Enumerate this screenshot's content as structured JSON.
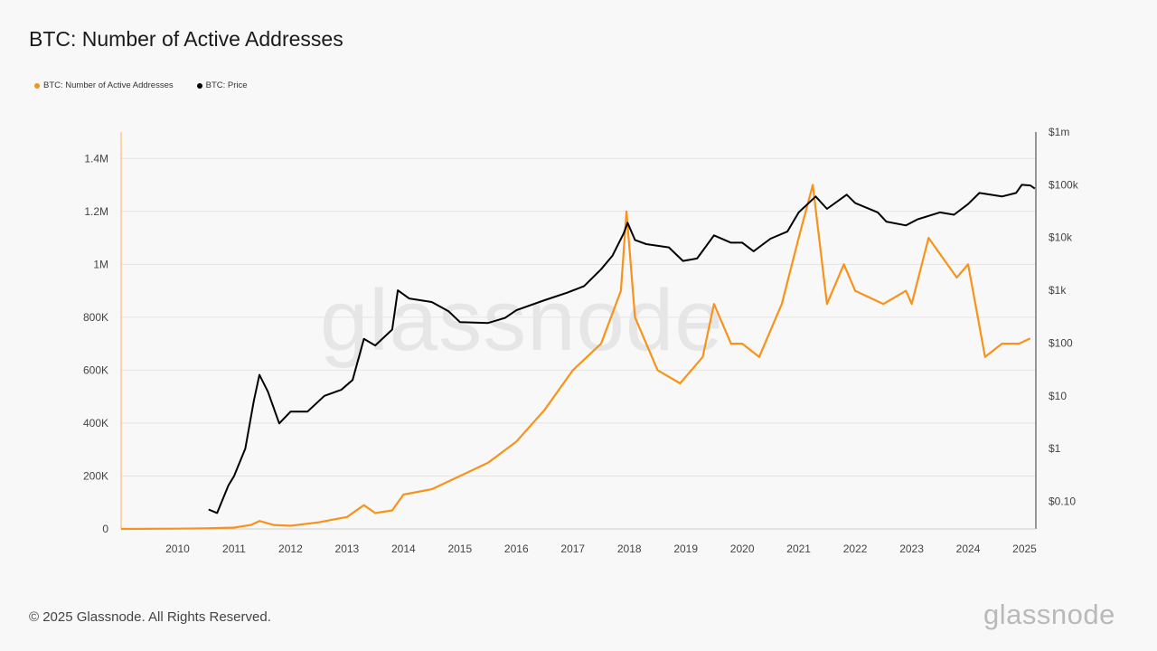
{
  "header": {
    "title": "BTC: Number of Active Addresses"
  },
  "legend": [
    {
      "label": "BTC: Number of Active Addresses",
      "color": "#f7931a"
    },
    {
      "label": "BTC: Price",
      "color": "#000000"
    }
  ],
  "watermark": "glassnode",
  "footer": {
    "copyright": "© 2025 Glassnode. All Rights Reserved.",
    "brand": "glassnode"
  },
  "chart_data": {
    "type": "line",
    "title": "BTC: Number of Active Addresses",
    "x_ticks": [
      "2010",
      "2011",
      "2012",
      "2013",
      "2014",
      "2015",
      "2016",
      "2017",
      "2018",
      "2019",
      "2020",
      "2021",
      "2022",
      "2023",
      "2024",
      "2025"
    ],
    "x_range": [
      2009.0,
      2025.2
    ],
    "y_left": {
      "ticks": [
        "0",
        "200K",
        "400K",
        "600K",
        "800K",
        "1M",
        "1.2M",
        "1.4M"
      ],
      "tick_values": [
        0,
        200000,
        400000,
        600000,
        800000,
        1000000,
        1200000,
        1400000
      ],
      "range": [
        0,
        1500000
      ]
    },
    "y_right": {
      "scale": "log",
      "ticks": [
        "$0.10",
        "$1",
        "$10",
        "$100",
        "$1k",
        "$10k",
        "$100k",
        "$1m"
      ],
      "tick_values": [
        0.1,
        1,
        10,
        100,
        1000,
        10000,
        100000,
        1000000
      ],
      "range": [
        0.03,
        1000000
      ]
    },
    "series": [
      {
        "name": "BTC: Number of Active Addresses",
        "axis": "left",
        "color": "#f7931a",
        "points": [
          [
            2009.0,
            0
          ],
          [
            2010.0,
            1000
          ],
          [
            2010.5,
            2000
          ],
          [
            2011.0,
            5000
          ],
          [
            2011.3,
            15000
          ],
          [
            2011.45,
            30000
          ],
          [
            2011.7,
            15000
          ],
          [
            2012.0,
            12000
          ],
          [
            2012.5,
            25000
          ],
          [
            2013.0,
            45000
          ],
          [
            2013.3,
            90000
          ],
          [
            2013.5,
            60000
          ],
          [
            2013.8,
            70000
          ],
          [
            2014.0,
            130000
          ],
          [
            2014.5,
            150000
          ],
          [
            2015.0,
            200000
          ],
          [
            2015.5,
            250000
          ],
          [
            2016.0,
            330000
          ],
          [
            2016.5,
            450000
          ],
          [
            2017.0,
            600000
          ],
          [
            2017.5,
            700000
          ],
          [
            2017.85,
            900000
          ],
          [
            2017.95,
            1200000
          ],
          [
            2018.1,
            800000
          ],
          [
            2018.5,
            600000
          ],
          [
            2018.9,
            550000
          ],
          [
            2019.3,
            650000
          ],
          [
            2019.5,
            850000
          ],
          [
            2019.8,
            700000
          ],
          [
            2020.0,
            700000
          ],
          [
            2020.3,
            650000
          ],
          [
            2020.7,
            850000
          ],
          [
            2021.0,
            1100000
          ],
          [
            2021.25,
            1300000
          ],
          [
            2021.5,
            850000
          ],
          [
            2021.8,
            1000000
          ],
          [
            2022.0,
            900000
          ],
          [
            2022.5,
            850000
          ],
          [
            2022.9,
            900000
          ],
          [
            2023.0,
            850000
          ],
          [
            2023.3,
            1100000
          ],
          [
            2023.8,
            950000
          ],
          [
            2024.0,
            1000000
          ],
          [
            2024.3,
            650000
          ],
          [
            2024.6,
            700000
          ],
          [
            2024.9,
            700000
          ],
          [
            2025.1,
            720000
          ]
        ]
      },
      {
        "name": "BTC: Price",
        "axis": "right",
        "color": "#000000",
        "points": [
          [
            2010.55,
            0.07
          ],
          [
            2010.7,
            0.06
          ],
          [
            2010.9,
            0.2
          ],
          [
            2011.0,
            0.3
          ],
          [
            2011.2,
            1
          ],
          [
            2011.35,
            8
          ],
          [
            2011.45,
            25
          ],
          [
            2011.6,
            12
          ],
          [
            2011.8,
            3
          ],
          [
            2012.0,
            5
          ],
          [
            2012.3,
            5
          ],
          [
            2012.6,
            10
          ],
          [
            2012.9,
            13
          ],
          [
            2013.1,
            20
          ],
          [
            2013.3,
            120
          ],
          [
            2013.5,
            90
          ],
          [
            2013.8,
            180
          ],
          [
            2013.9,
            1000
          ],
          [
            2014.1,
            700
          ],
          [
            2014.5,
            600
          ],
          [
            2014.8,
            400
          ],
          [
            2015.0,
            250
          ],
          [
            2015.5,
            240
          ],
          [
            2015.8,
            300
          ],
          [
            2016.0,
            420
          ],
          [
            2016.5,
            650
          ],
          [
            2016.9,
            900
          ],
          [
            2017.2,
            1200
          ],
          [
            2017.5,
            2500
          ],
          [
            2017.7,
            4500
          ],
          [
            2017.9,
            12000
          ],
          [
            2017.97,
            19000
          ],
          [
            2018.1,
            9000
          ],
          [
            2018.3,
            7500
          ],
          [
            2018.7,
            6500
          ],
          [
            2018.95,
            3600
          ],
          [
            2019.2,
            4000
          ],
          [
            2019.5,
            11000
          ],
          [
            2019.8,
            8000
          ],
          [
            2020.0,
            8000
          ],
          [
            2020.2,
            5500
          ],
          [
            2020.5,
            9500
          ],
          [
            2020.8,
            13000
          ],
          [
            2021.0,
            30000
          ],
          [
            2021.3,
            60000
          ],
          [
            2021.5,
            35000
          ],
          [
            2021.85,
            65000
          ],
          [
            2022.0,
            45000
          ],
          [
            2022.4,
            30000
          ],
          [
            2022.55,
            20000
          ],
          [
            2022.9,
            17000
          ],
          [
            2023.1,
            22000
          ],
          [
            2023.5,
            30000
          ],
          [
            2023.75,
            27000
          ],
          [
            2024.0,
            43000
          ],
          [
            2024.2,
            70000
          ],
          [
            2024.6,
            60000
          ],
          [
            2024.85,
            70000
          ],
          [
            2024.95,
            100000
          ],
          [
            2025.1,
            97000
          ],
          [
            2025.18,
            85000
          ]
        ]
      }
    ]
  }
}
